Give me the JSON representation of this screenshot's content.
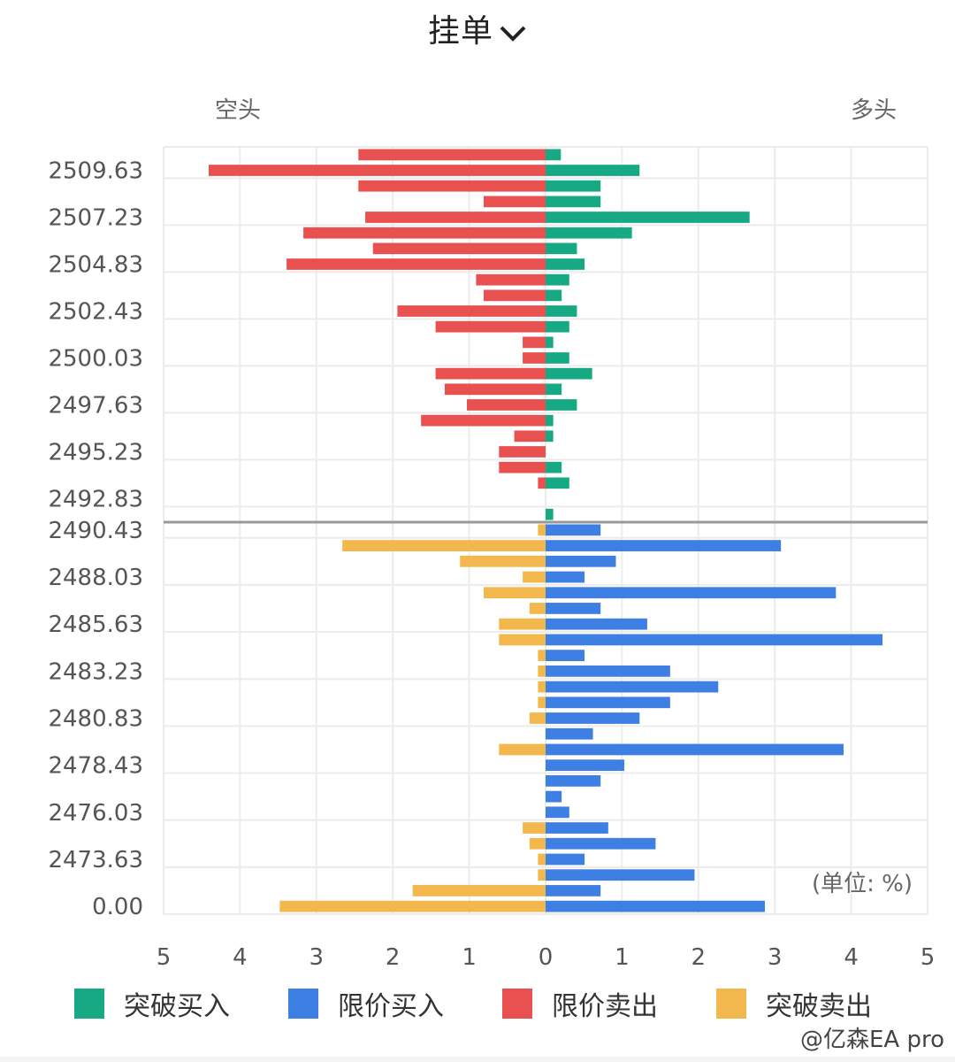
{
  "header": {
    "title": "挂单",
    "dropdown_icon": "chevron-down-icon"
  },
  "side_labels": {
    "short": "空头",
    "long": "多头"
  },
  "unit_label": "(单位: %)",
  "watermark": "@亿森EA pro",
  "colors": {
    "breakout_buy": "#17a984",
    "limit_buy": "#3d7fe3",
    "limit_sell": "#e8514f",
    "breakout_sell": "#f2b84e",
    "grid": "#ececec",
    "divider": "#999999",
    "axis_text": "#555555"
  },
  "chart_data": {
    "type": "bar",
    "orientation": "horizontal-diverging",
    "title": "挂单",
    "xlabel": "",
    "ylabel": "",
    "unit": "%",
    "xlim": [
      -5,
      5
    ],
    "x_tick_labels": [
      "5",
      "4",
      "3",
      "2",
      "1",
      "0",
      "1",
      "2",
      "3",
      "4",
      "5"
    ],
    "y_tick_labels": [
      {
        "row": 1,
        "label": "2509.63"
      },
      {
        "row": 4,
        "label": "2507.23"
      },
      {
        "row": 7,
        "label": "2504.83"
      },
      {
        "row": 10,
        "label": "2502.43"
      },
      {
        "row": 13,
        "label": "2500.03"
      },
      {
        "row": 16,
        "label": "2497.63"
      },
      {
        "row": 19,
        "label": "2495.23"
      },
      {
        "row": 22,
        "label": "2492.83"
      },
      {
        "row": 24,
        "label": "2490.43"
      },
      {
        "row": 27,
        "label": "2488.03"
      },
      {
        "row": 30,
        "label": "2485.63"
      },
      {
        "row": 33,
        "label": "2483.23"
      },
      {
        "row": 36,
        "label": "2480.83"
      },
      {
        "row": 39,
        "label": "2478.43"
      },
      {
        "row": 42,
        "label": "2476.03"
      },
      {
        "row": 45,
        "label": "2473.63"
      },
      {
        "row": 48,
        "label": "0.00"
      }
    ],
    "current_price_divider_after_row": 23,
    "grid": true,
    "legend_position": "bottom",
    "legend": [
      "突破买入",
      "限价买入",
      "限价卖出",
      "突破卖出"
    ],
    "upper_section": {
      "rows": 24,
      "left_series": {
        "name": "限价卖出",
        "side": "left",
        "values": [
          2.45,
          4.41,
          2.45,
          0.81,
          2.36,
          3.17,
          2.26,
          3.39,
          0.91,
          0.81,
          1.94,
          1.44,
          0.3,
          0.3,
          1.44,
          1.32,
          1.03,
          1.63,
          0.41,
          0.61,
          0.61,
          0.1,
          0,
          0
        ]
      },
      "right_series": {
        "name": "突破买入",
        "side": "right",
        "values": [
          0.2,
          1.23,
          0.72,
          0.72,
          2.67,
          1.13,
          0.41,
          0.51,
          0.31,
          0.21,
          0.41,
          0.31,
          0.1,
          0.31,
          0.61,
          0.21,
          0.41,
          0.1,
          0.1,
          0,
          0.21,
          0.31,
          0,
          0.1
        ]
      }
    },
    "lower_section": {
      "rows": 25,
      "left_series": {
        "name": "突破卖出",
        "side": "left",
        "values": [
          0.1,
          2.66,
          1.12,
          0.3,
          0.81,
          0.21,
          0.61,
          0.61,
          0.1,
          0.1,
          0.1,
          0.1,
          0.21,
          0,
          0.61,
          0,
          0,
          0,
          0,
          0.3,
          0.21,
          0.1,
          0.1,
          1.74,
          3.48
        ]
      },
      "right_series": {
        "name": "限价买入",
        "side": "right",
        "values": [
          0.72,
          3.08,
          0.92,
          0.51,
          3.8,
          0.72,
          1.33,
          4.41,
          0.51,
          1.63,
          2.26,
          1.63,
          1.23,
          0.62,
          3.9,
          1.03,
          0.72,
          0.21,
          0.31,
          0.82,
          1.44,
          0.51,
          1.95,
          0.72,
          2.87
        ]
      }
    }
  }
}
